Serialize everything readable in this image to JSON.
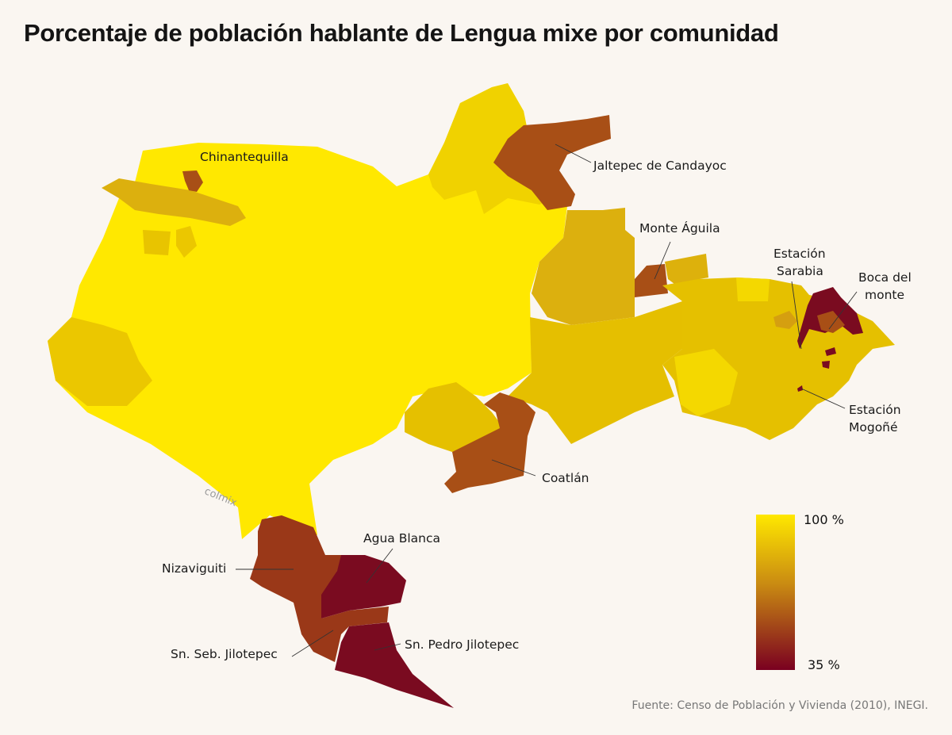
{
  "title": "Porcentaje de población hablante de Lengua mixe por comunidad",
  "watermark": "colmix",
  "source": "Fuente: Censo de Población y Vivienda (2010), INEGI.",
  "legend": {
    "max_label": "100 %",
    "min_label": "35 %",
    "max_value": 100,
    "min_value": 35,
    "color_max": "#ffe800",
    "color_mid": "#c98a12",
    "color_min": "#7a0020"
  },
  "labels": {
    "chinantequilla": "Chinantequilla",
    "jaltepec": "Jaltepec de Candayoc",
    "monte_aguila": "Monte Águila",
    "estacion_sarabia_1": "Estación",
    "estacion_sarabia_2": "Sarabia",
    "boca_del_monte_1": "Boca del",
    "boca_del_monte_2": "monte",
    "estacion_mogone_1": "Estación",
    "estacion_mogone_2": "Mogoñé",
    "coatlan": "Coatlán",
    "agua_blanca": "Agua Blanca",
    "nizaviguiti": "Nizaviguiti",
    "sn_seb": "Sn. Seb. Jilotepec",
    "sn_pedro": "Sn. Pedro Jilotepec"
  }
}
